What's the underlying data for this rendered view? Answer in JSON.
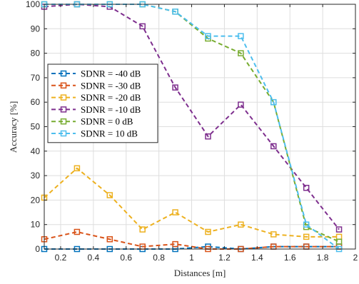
{
  "chart_data": {
    "type": "line",
    "xlabel": "Distances [m]",
    "ylabel": "Accuracy [%]",
    "xlim": [
      0.1,
      2.0
    ],
    "ylim": [
      0,
      100
    ],
    "xticks": [
      0.2,
      0.4,
      0.6,
      0.8,
      1.0,
      1.2,
      1.4,
      1.6,
      1.8,
      2.0
    ],
    "xtick_labels": [
      "0.2",
      "0.4",
      "0.6",
      "0.8",
      "1",
      "1.2",
      "1.4",
      "1.6",
      "1.8",
      "2"
    ],
    "yticks": [
      0,
      10,
      20,
      30,
      40,
      50,
      60,
      70,
      80,
      90,
      100
    ],
    "ytick_labels": [
      "0",
      "10",
      "20",
      "30",
      "40",
      "50",
      "60",
      "70",
      "80",
      "90",
      "100"
    ],
    "grid": true,
    "legend_position": "center-left",
    "x": [
      0.1,
      0.3,
      0.5,
      0.7,
      0.9,
      1.1,
      1.3,
      1.5,
      1.7,
      1.9
    ],
    "series": [
      {
        "name": "SDNR = -40 dB",
        "color": "#0072BD",
        "values": [
          0,
          0,
          0,
          0,
          0,
          1,
          0,
          1,
          1,
          1
        ]
      },
      {
        "name": "SDNR = -30 dB",
        "color": "#D95319",
        "values": [
          4,
          7,
          4,
          1,
          2,
          0,
          0,
          1,
          1,
          1
        ]
      },
      {
        "name": "SDNR = -20 dB",
        "color": "#EDB120",
        "values": [
          21,
          33,
          22,
          8,
          15,
          7,
          10,
          6,
          5,
          5
        ]
      },
      {
        "name": "SDNR = -10 dB",
        "color": "#7E2F8E",
        "values": [
          99,
          100,
          99,
          91,
          66,
          46,
          59,
          42,
          25,
          8
        ]
      },
      {
        "name": "SDNR = 0 dB",
        "color": "#77AC30",
        "values": [
          100,
          100,
          100,
          100,
          97,
          86,
          80,
          60,
          9,
          3
        ]
      },
      {
        "name": "SDNR = 10 dB",
        "color": "#4DBEEE",
        "values": [
          100,
          100,
          100,
          100,
          97,
          87,
          87,
          60,
          10,
          0
        ]
      }
    ]
  }
}
